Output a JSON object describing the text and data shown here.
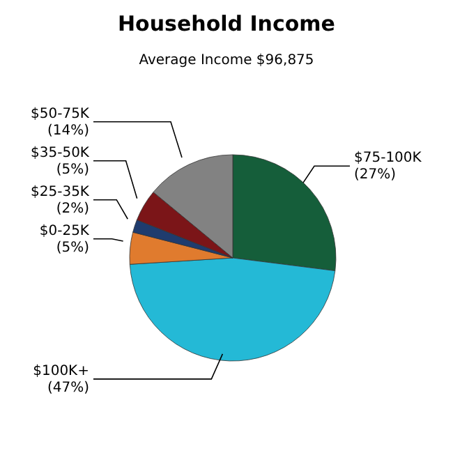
{
  "chart_data": {
    "type": "pie",
    "title": "Household Income",
    "subtitle": "Average Income  $96,875",
    "categories": [
      "$75-100K",
      "$100K+",
      "$0-25K",
      "$25-35K",
      "$35-50K",
      "$50-75K"
    ],
    "values": [
      27,
      47,
      5,
      2,
      5,
      14
    ],
    "value_labels": [
      "(27%)",
      "(47%)",
      "(5%)",
      "(2%)",
      "(5%)",
      "(14%)"
    ],
    "colors": [
      "#155e3a",
      "#24b9d6",
      "#e07b2e",
      "#1f3c6e",
      "#7b1518",
      "#828282"
    ]
  }
}
